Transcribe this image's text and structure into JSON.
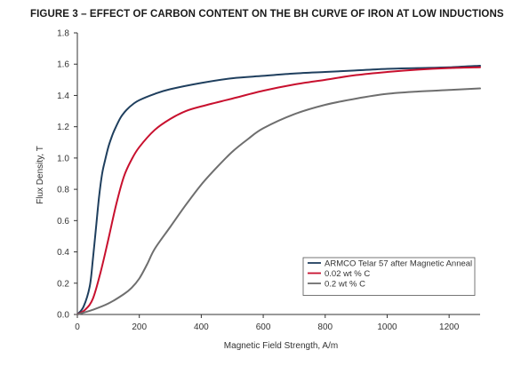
{
  "chart_data": {
    "type": "line",
    "title": "FIGURE 3 – EFFECT OF CARBON CONTENT ON THE BH CURVE OF IRON AT LOW INDUCTIONS",
    "xlabel": "Magnetic Field Strength, A/m",
    "ylabel": "Flux Density, T",
    "xlim": [
      0,
      1300
    ],
    "ylim": [
      0,
      1.8
    ],
    "x_ticks": [
      0,
      200,
      400,
      600,
      800,
      1000,
      1200
    ],
    "x_tick_labels": [
      "0",
      "200",
      "400",
      "600",
      "800",
      "1000",
      "1200"
    ],
    "y_ticks": [
      0,
      0.2,
      0.4,
      0.6,
      0.8,
      1.0,
      1.2,
      1.4,
      1.6,
      1.8
    ],
    "y_tick_labels": [
      "0.0",
      "0.2",
      "0.4",
      "0.6",
      "0.8",
      "1.0",
      "1.2",
      "1.4",
      "1.6",
      "1.8"
    ],
    "grid": false,
    "legend_position": "bottom-right",
    "series": [
      {
        "name": "ARMCO Telar 57 after Magnetic Anneal",
        "color": "#1f3f5e",
        "x": [
          0,
          20,
          40,
          50,
          60,
          70,
          80,
          90,
          100,
          110,
          120,
          140,
          160,
          180,
          200,
          250,
          300,
          400,
          500,
          600,
          700,
          800,
          900,
          1000,
          1100,
          1200,
          1300
        ],
        "y": [
          0,
          0.05,
          0.18,
          0.35,
          0.55,
          0.75,
          0.9,
          0.99,
          1.07,
          1.13,
          1.18,
          1.26,
          1.31,
          1.345,
          1.37,
          1.41,
          1.44,
          1.48,
          1.51,
          1.525,
          1.54,
          1.55,
          1.56,
          1.57,
          1.575,
          1.58,
          1.59
        ]
      },
      {
        "name": "0.02 wt % C",
        "color": "#c8102e",
        "x": [
          0,
          25,
          50,
          75,
          100,
          125,
          150,
          175,
          200,
          250,
          300,
          350,
          400,
          500,
          600,
          700,
          800,
          900,
          1000,
          1100,
          1200,
          1300
        ],
        "y": [
          0,
          0.03,
          0.1,
          0.27,
          0.48,
          0.7,
          0.88,
          0.99,
          1.07,
          1.18,
          1.25,
          1.3,
          1.33,
          1.38,
          1.43,
          1.47,
          1.5,
          1.53,
          1.55,
          1.565,
          1.575,
          1.58
        ]
      },
      {
        "name": "0.2 wt % C",
        "color": "#6e6e6e",
        "x": [
          0,
          50,
          100,
          150,
          175,
          200,
          225,
          250,
          300,
          350,
          400,
          450,
          500,
          550,
          600,
          700,
          800,
          900,
          1000,
          1100,
          1200,
          1300
        ],
        "y": [
          0,
          0.03,
          0.07,
          0.13,
          0.17,
          0.23,
          0.32,
          0.42,
          0.56,
          0.7,
          0.83,
          0.94,
          1.04,
          1.12,
          1.19,
          1.28,
          1.34,
          1.38,
          1.41,
          1.425,
          1.435,
          1.445
        ]
      }
    ]
  }
}
